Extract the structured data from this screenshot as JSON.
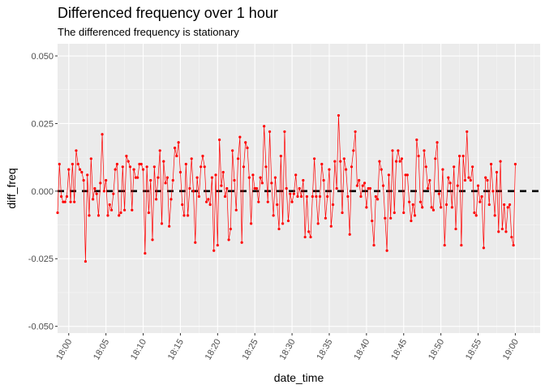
{
  "colors": {
    "panel_background": "#ebebeb",
    "grid_major": "#ffffff",
    "grid_minor": "#f5f5f5",
    "series": "#ff0000",
    "mean_line": "#000000",
    "tick_text": "#4d4d4d"
  },
  "chart_data": {
    "type": "line",
    "title": "Differenced frequency over 1 hour",
    "subtitle": "The differenced frequency is stationary",
    "xlabel": "date_time",
    "ylabel": "diff_freq",
    "x_tick_labels": [
      "18:00",
      "18:05",
      "18:10",
      "18:15",
      "18:20",
      "18:25",
      "18:30",
      "18:35",
      "18:40",
      "18:45",
      "18:50",
      "18:55",
      "19:00"
    ],
    "y_tick_labels": [
      "0.050",
      "0.025",
      "0.000",
      "-0.025",
      "-0.050"
    ],
    "y_ticks": [
      0.05,
      0.025,
      0,
      -0.025,
      -0.05
    ],
    "xlim": [
      "17:58:30",
      "19:03:20"
    ],
    "ylim": [
      -0.0525,
      0.0545
    ],
    "sample_interval_seconds": 15,
    "start_time": "17:58:30",
    "grid": true,
    "reference_line": {
      "y": 0.0,
      "style": "dashed",
      "color": "#000000"
    },
    "series": [
      {
        "values": [
          -0.008,
          0.01,
          -0.002,
          -0.004,
          -0.004,
          -0.002,
          0.008,
          -0.004,
          0.01,
          -0.004,
          0.015,
          0.01,
          0.008,
          0.007,
          0.004,
          -0.026,
          0.006,
          -0.009,
          0.012,
          -0.003,
          0.001,
          -0.001,
          -0.009,
          0.003,
          0.021,
          0.0,
          0.004,
          -0.009,
          -0.005,
          -0.007,
          -0.001,
          0.008,
          0.01,
          -0.009,
          -0.008,
          0.009,
          -0.007,
          0.013,
          0.011,
          0.009,
          -0.007,
          0.008,
          0.005,
          0.005,
          0.01,
          0.01,
          0.008,
          -0.023,
          0.009,
          -0.008,
          0.004,
          -0.018,
          0.009,
          -0.003,
          0.005,
          0.015,
          -0.012,
          0.011,
          0.003,
          0.005,
          -0.013,
          -0.003,
          0.004,
          0.016,
          0.013,
          0.018,
          0.007,
          -0.005,
          -0.009,
          0.01,
          -0.009,
          0.001,
          0.012,
          0.0,
          -0.019,
          0.005,
          -0.002,
          0.009,
          0.013,
          0.009,
          -0.004,
          -0.003,
          -0.005,
          0.005,
          -0.022,
          0.006,
          -0.02,
          0.019,
          0.002,
          0.007,
          -0.002,
          0.001,
          -0.018,
          -0.014,
          0.015,
          0.004,
          -0.007,
          0.012,
          0.02,
          -0.019,
          0.009,
          0.018,
          0.016,
          0.005,
          -0.012,
          0.006,
          0.001,
          0.001,
          -0.004,
          0.005,
          0.003,
          0.024,
          0.009,
          -0.004,
          0.022,
          0.003,
          -0.009,
          0.005,
          -0.005,
          -0.014,
          0.013,
          -0.012,
          0.022,
          0.001,
          -0.011,
          -0.001,
          -0.004,
          -0.001,
          0.006,
          -0.002,
          0.001,
          -0.002,
          0.004,
          -0.017,
          -0.002,
          -0.015,
          -0.017,
          -0.002,
          0.012,
          -0.002,
          -0.012,
          -0.002,
          0.01,
          0.004,
          -0.01,
          -0.002,
          0.008,
          -0.013,
          -0.005,
          0.011,
          0.001,
          0.028,
          0.011,
          -0.008,
          0.012,
          0.008,
          -0.002,
          -0.016,
          0.009,
          0.015,
          0.022,
          0.002,
          0.004,
          -0.002,
          0.002,
          0.003,
          -0.006,
          0.001,
          0.001,
          -0.011,
          -0.02,
          -0.002,
          -0.003,
          0.011,
          0.008,
          0.002,
          -0.01,
          -0.022,
          0.006,
          -0.01,
          0.015,
          -0.008,
          0.011,
          0.015,
          0.011,
          0.012,
          -0.008,
          0.006,
          0.006,
          -0.004,
          -0.011,
          -0.005,
          -0.009,
          0.019,
          0.013,
          -0.004,
          -0.006,
          0.015,
          0.009,
          0.001,
          0.004,
          -0.006,
          -0.007,
          0.012,
          0.018,
          -0.001,
          -0.006,
          0.008,
          -0.02,
          -0.005,
          0.005,
          0.003,
          -0.006,
          0.009,
          -0.014,
          0.002,
          0.013,
          -0.02,
          0.013,
          0.004,
          0.022,
          0.005,
          0.004,
          0.009,
          -0.008,
          -0.009,
          0.002,
          -0.004,
          -0.002,
          -0.021,
          0.005,
          0.004,
          -0.005,
          0.01,
          0.0,
          -0.009,
          0.007,
          -0.015,
          0.011,
          -0.014,
          -0.005,
          -0.015,
          -0.006,
          -0.005,
          -0.017,
          -0.02,
          0.01
        ]
      }
    ]
  }
}
